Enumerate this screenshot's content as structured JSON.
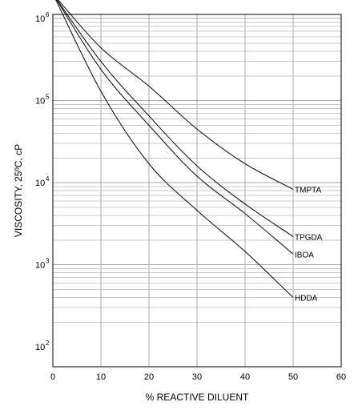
{
  "chart_data": {
    "type": "line",
    "xlabel": "% REACTIVE DILUENT",
    "ylabel": "VISCOSITY, 25ºC, cP",
    "xlim": [
      0,
      60
    ],
    "ylim": [
      100,
      2000000
    ],
    "yscale": "log",
    "x_ticks": [
      "0",
      "10",
      "20",
      "30",
      "40",
      "50",
      "60"
    ],
    "y_ticks": [
      {
        "base": "10",
        "exp": "2"
      },
      {
        "base": "10",
        "exp": "3"
      },
      {
        "base": "10",
        "exp": "4"
      },
      {
        "base": "10",
        "exp": "5"
      },
      {
        "base": "10",
        "exp": "6"
      }
    ],
    "grid": true,
    "series": [
      {
        "name": "TMPTA",
        "x": [
          0,
          10,
          20,
          30,
          40,
          50
        ],
        "y": [
          2000000,
          440000,
          150000,
          45000,
          17000,
          8300
        ]
      },
      {
        "name": "TPGDA",
        "x": [
          0,
          10,
          20,
          30,
          40,
          50
        ],
        "y": [
          2000000,
          300000,
          65000,
          16000,
          5500,
          2200
        ]
      },
      {
        "name": "IBOA",
        "x": [
          0,
          10,
          20,
          30,
          40,
          50
        ],
        "y": [
          2000000,
          240000,
          50000,
          12000,
          4200,
          1350
        ]
      },
      {
        "name": "HDDA",
        "x": [
          0,
          10,
          20,
          30,
          40,
          50
        ],
        "y": [
          2000000,
          130000,
          17000,
          4600,
          1450,
          400
        ]
      }
    ]
  }
}
